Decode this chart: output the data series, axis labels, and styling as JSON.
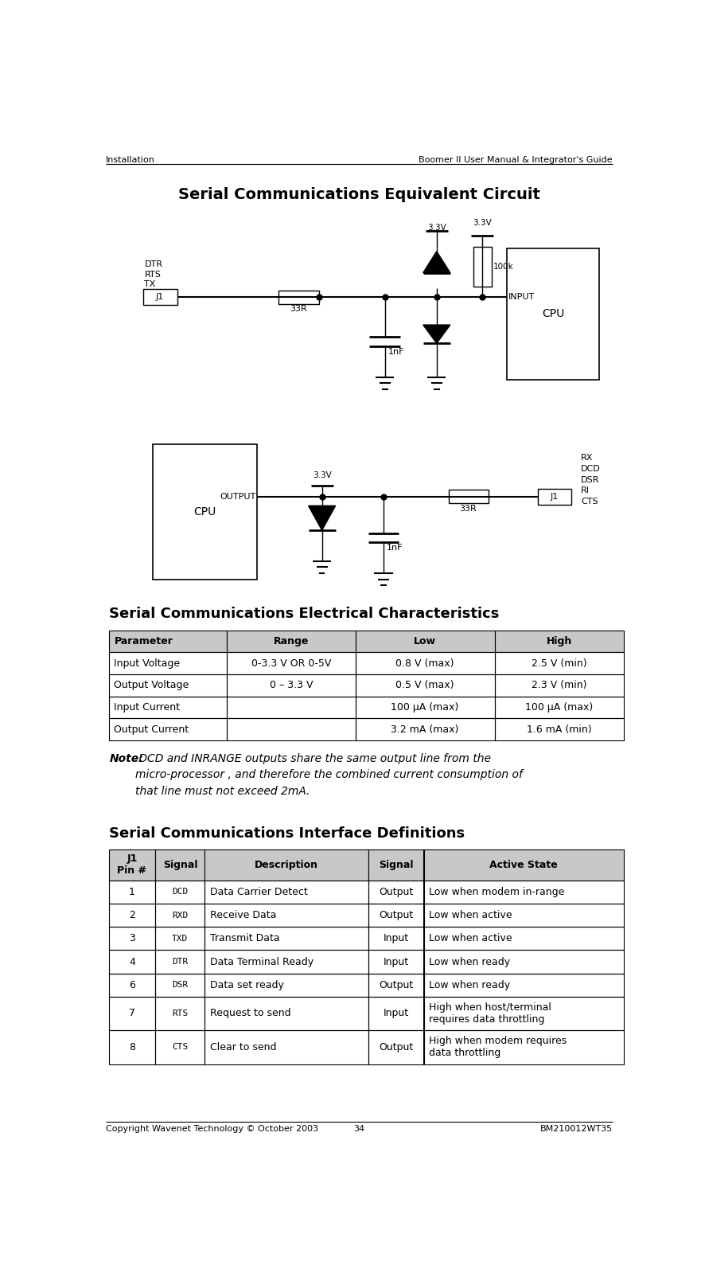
{
  "page_title_left": "Installation",
  "page_title_right": "Boomer II User Manual & Integrator's Guide",
  "footer_left": "Copyright Wavenet Technology © October 2003",
  "footer_center": "34",
  "footer_right": "BM210012WT35",
  "section1_title": "Serial Communications Equivalent Circuit",
  "section2_title": "Serial Communications Electrical Characteristics",
  "elec_table_headers": [
    "Parameter",
    "Range",
    "Low",
    "High"
  ],
  "elec_table_rows": [
    [
      "Input Voltage",
      "0-3.3 V OR 0-5V",
      "0.8 V (max)",
      "2.5 V (min)"
    ],
    [
      "Output Voltage",
      "0 – 3.3 V",
      "0.5 V (max)",
      "2.3 V (min)"
    ],
    [
      "Input Current",
      "",
      "100 µA (max)",
      "100 µA (max)"
    ],
    [
      "Output Current",
      "",
      "3.2 mA (max)",
      "1.6 mA (min)"
    ]
  ],
  "note_text": " DCD and INRANGE outputs share the same output line from the\nmicro-processor , and therefore the combined current consumption of\nthat line must not exceed 2mA.",
  "note_bold": "Note:",
  "section3_title": "Serial Communications Interface Definitions",
  "iface_table_headers": [
    "J1\nPin #",
    "Signal",
    "Description",
    "Signal",
    "Active State"
  ],
  "iface_table_rows": [
    [
      "1",
      "DCD",
      "Data Carrier Detect",
      "Output",
      "Low when modem in-range"
    ],
    [
      "2",
      "RXD",
      "Receive Data",
      "Output",
      "Low when active"
    ],
    [
      "3",
      "TXD",
      "Transmit Data",
      "Input",
      "Low when active"
    ],
    [
      "4",
      "DTR",
      "Data Terminal Ready",
      "Input",
      "Low when ready"
    ],
    [
      "6",
      "DSR",
      "Data set ready",
      "Output",
      "Low when ready"
    ],
    [
      "7",
      "RTS",
      "Request to send",
      "Input",
      "High when host/terminal\nrequires data throttling"
    ],
    [
      "8",
      "CTS",
      "Clear to send",
      "Output",
      "High when modem requires\ndata throttling"
    ]
  ],
  "bg_color": "#ffffff",
  "line_color": "#000000",
  "header_bg": "#c8c8c8"
}
